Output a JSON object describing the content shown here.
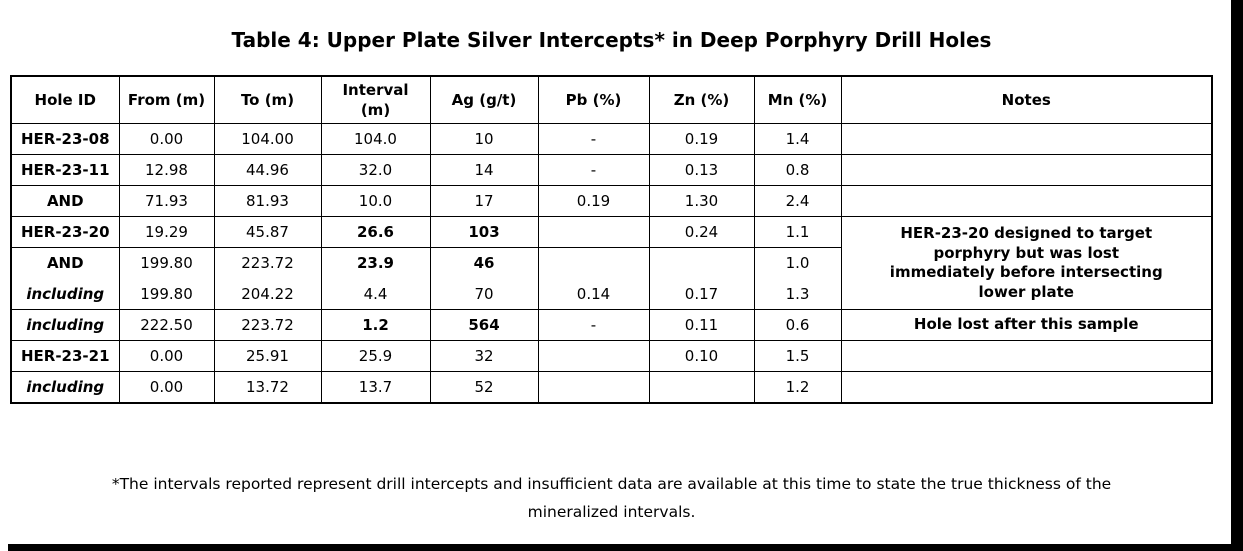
{
  "page": {
    "title": "Table 4: Upper Plate Silver Intercepts* in Deep Porphyry Drill Holes",
    "footnote": "*The intervals reported represent drill intercepts and insufficient data are available at this time to state the true thickness of the\nmineralized intervals.",
    "background_color": "#ffffff",
    "text_color": "#000000",
    "edge_bar_color": "#000000"
  },
  "table": {
    "columns": [
      {
        "key": "hole_id",
        "label": "Hole ID"
      },
      {
        "key": "from",
        "label": "From (m)"
      },
      {
        "key": "to",
        "label": "To (m)"
      },
      {
        "key": "interval",
        "label": "Interval\n(m)"
      },
      {
        "key": "ag",
        "label": "Ag (g/t)"
      },
      {
        "key": "pb",
        "label": "Pb (%)"
      },
      {
        "key": "zn",
        "label": "Zn (%)"
      },
      {
        "key": "mn",
        "label": "Mn (%)"
      },
      {
        "key": "notes",
        "label": "Notes"
      }
    ],
    "rows": [
      {
        "hole_id": "HER-23-08",
        "hole_style": "bold",
        "from": "0.00",
        "to": "104.00",
        "interval": "104.0",
        "ag": "10",
        "pb": "-",
        "zn": "0.19",
        "mn": "1.4",
        "bold": [],
        "note": ""
      },
      {
        "hole_id": "HER-23-11",
        "hole_style": "bold",
        "from": "12.98",
        "to": "44.96",
        "interval": "32.0",
        "ag": "14",
        "pb": "-",
        "zn": "0.13",
        "mn": "0.8",
        "bold": [],
        "note": ""
      },
      {
        "hole_id": "AND",
        "hole_style": "bold",
        "from": "71.93",
        "to": "81.93",
        "interval": "10.0",
        "ag": "17",
        "pb": "0.19",
        "zn": "1.30",
        "mn": "2.4",
        "bold": [],
        "note": ""
      },
      {
        "hole_id": "HER-23-20",
        "hole_style": "bold",
        "from": "19.29",
        "to": "45.87",
        "interval": "26.6",
        "ag": "103",
        "pb": "",
        "zn": "0.24",
        "mn": "1.1",
        "bold": [
          "interval",
          "ag"
        ],
        "note": "HER-23-20 designed to target\nporphyry but was lost\nimmediately before intersecting\nlower plate",
        "note_rowspan": 3
      },
      {
        "hole_id": "AND",
        "hole_style": "bold",
        "from": "199.80",
        "to": "223.72",
        "interval": "23.9",
        "ag": "46",
        "pb": "",
        "zn": "",
        "mn": "1.0",
        "bold": [
          "interval",
          "ag"
        ],
        "note_skip": true,
        "row_class": "no-bottom"
      },
      {
        "hole_id": "including",
        "hole_style": "bolditalic",
        "from": "199.80",
        "to": "204.22",
        "interval": "4.4",
        "ag": "70",
        "pb": "0.14",
        "zn": "0.17",
        "mn": "1.3",
        "bold": [],
        "note_skip": true,
        "row_class": "no-top"
      },
      {
        "hole_id": "including",
        "hole_style": "bolditalic",
        "from": "222.50",
        "to": "223.72",
        "interval": "1.2",
        "ag": "564",
        "pb": "-",
        "zn": "0.11",
        "mn": "0.6",
        "bold": [
          "interval",
          "ag"
        ],
        "note": "Hole lost after this sample"
      },
      {
        "hole_id": "HER-23-21",
        "hole_style": "bold",
        "from": "0.00",
        "to": "25.91",
        "interval": "25.9",
        "ag": "32",
        "pb": "",
        "zn": "0.10",
        "mn": "1.5",
        "bold": [],
        "note": ""
      },
      {
        "hole_id": "including",
        "hole_style": "bolditalic",
        "from": "0.00",
        "to": "13.72",
        "interval": "13.7",
        "ag": "52",
        "pb": "",
        "zn": "",
        "mn": "1.2",
        "bold": [],
        "note": ""
      }
    ]
  }
}
